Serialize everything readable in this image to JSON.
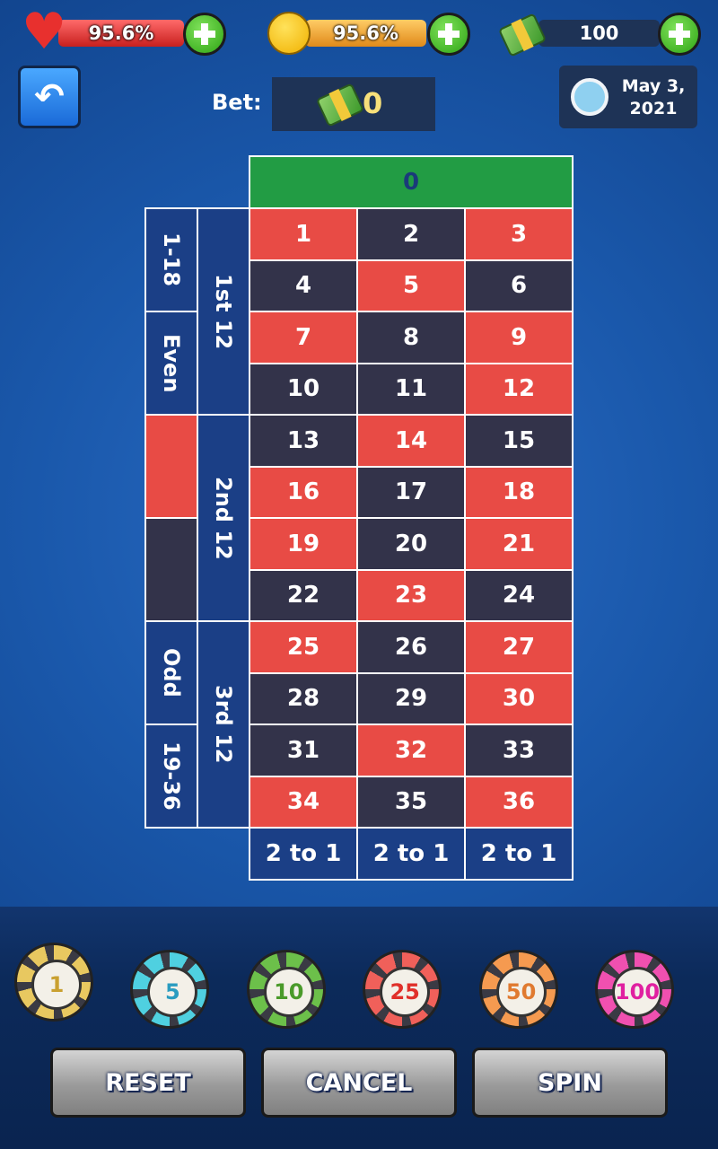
{
  "status": {
    "health": "95.6%",
    "happiness": "95.6%",
    "money": "100"
  },
  "bet": {
    "label": "Bet:",
    "amount": "0"
  },
  "date": {
    "line1": "May 3,",
    "line2": "2021"
  },
  "table": {
    "zero": "0",
    "cells": [
      {
        "number": 1,
        "color": "red"
      },
      {
        "number": 2,
        "color": "black"
      },
      {
        "number": 3,
        "color": "red"
      },
      {
        "number": 4,
        "color": "black"
      },
      {
        "number": 5,
        "color": "red"
      },
      {
        "number": 6,
        "color": "black"
      },
      {
        "number": 7,
        "color": "red"
      },
      {
        "number": 8,
        "color": "black"
      },
      {
        "number": 9,
        "color": "red"
      },
      {
        "number": 10,
        "color": "black"
      },
      {
        "number": 11,
        "color": "black"
      },
      {
        "number": 12,
        "color": "red"
      },
      {
        "number": 13,
        "color": "black"
      },
      {
        "number": 14,
        "color": "red"
      },
      {
        "number": 15,
        "color": "black"
      },
      {
        "number": 16,
        "color": "red"
      },
      {
        "number": 17,
        "color": "black"
      },
      {
        "number": 18,
        "color": "red"
      },
      {
        "number": 19,
        "color": "red"
      },
      {
        "number": 20,
        "color": "black"
      },
      {
        "number": 21,
        "color": "red"
      },
      {
        "number": 22,
        "color": "black"
      },
      {
        "number": 23,
        "color": "red"
      },
      {
        "number": 24,
        "color": "black"
      },
      {
        "number": 25,
        "color": "red"
      },
      {
        "number": 26,
        "color": "black"
      },
      {
        "number": 27,
        "color": "red"
      },
      {
        "number": 28,
        "color": "black"
      },
      {
        "number": 29,
        "color": "black"
      },
      {
        "number": 30,
        "color": "red"
      },
      {
        "number": 31,
        "color": "black"
      },
      {
        "number": 32,
        "color": "red"
      },
      {
        "number": 33,
        "color": "black"
      },
      {
        "number": 34,
        "color": "red"
      },
      {
        "number": 35,
        "color": "black"
      },
      {
        "number": 36,
        "color": "red"
      }
    ],
    "outside": [
      "1-18",
      "Even",
      "Odd",
      "19-36"
    ],
    "dozens": [
      "1st 12",
      "2nd 12",
      "3rd 12"
    ],
    "columns": [
      "2 to 1",
      "2 to 1",
      "2 to 1"
    ]
  },
  "chips": [
    {
      "value": "1",
      "color": "#e8c860",
      "text": "#c9a030"
    },
    {
      "value": "5",
      "color": "#4fd0e0",
      "text": "#2a9cc0"
    },
    {
      "value": "10",
      "color": "#6cc04a",
      "text": "#4a9a2a"
    },
    {
      "value": "25",
      "color": "#f0605a",
      "text": "#e0302a"
    },
    {
      "value": "50",
      "color": "#f59a50",
      "text": "#e07a30"
    },
    {
      "value": "100",
      "color": "#f050b0",
      "text": "#e020a0"
    }
  ],
  "buttons": [
    "RESET",
    "CANCEL",
    "SPIN"
  ]
}
